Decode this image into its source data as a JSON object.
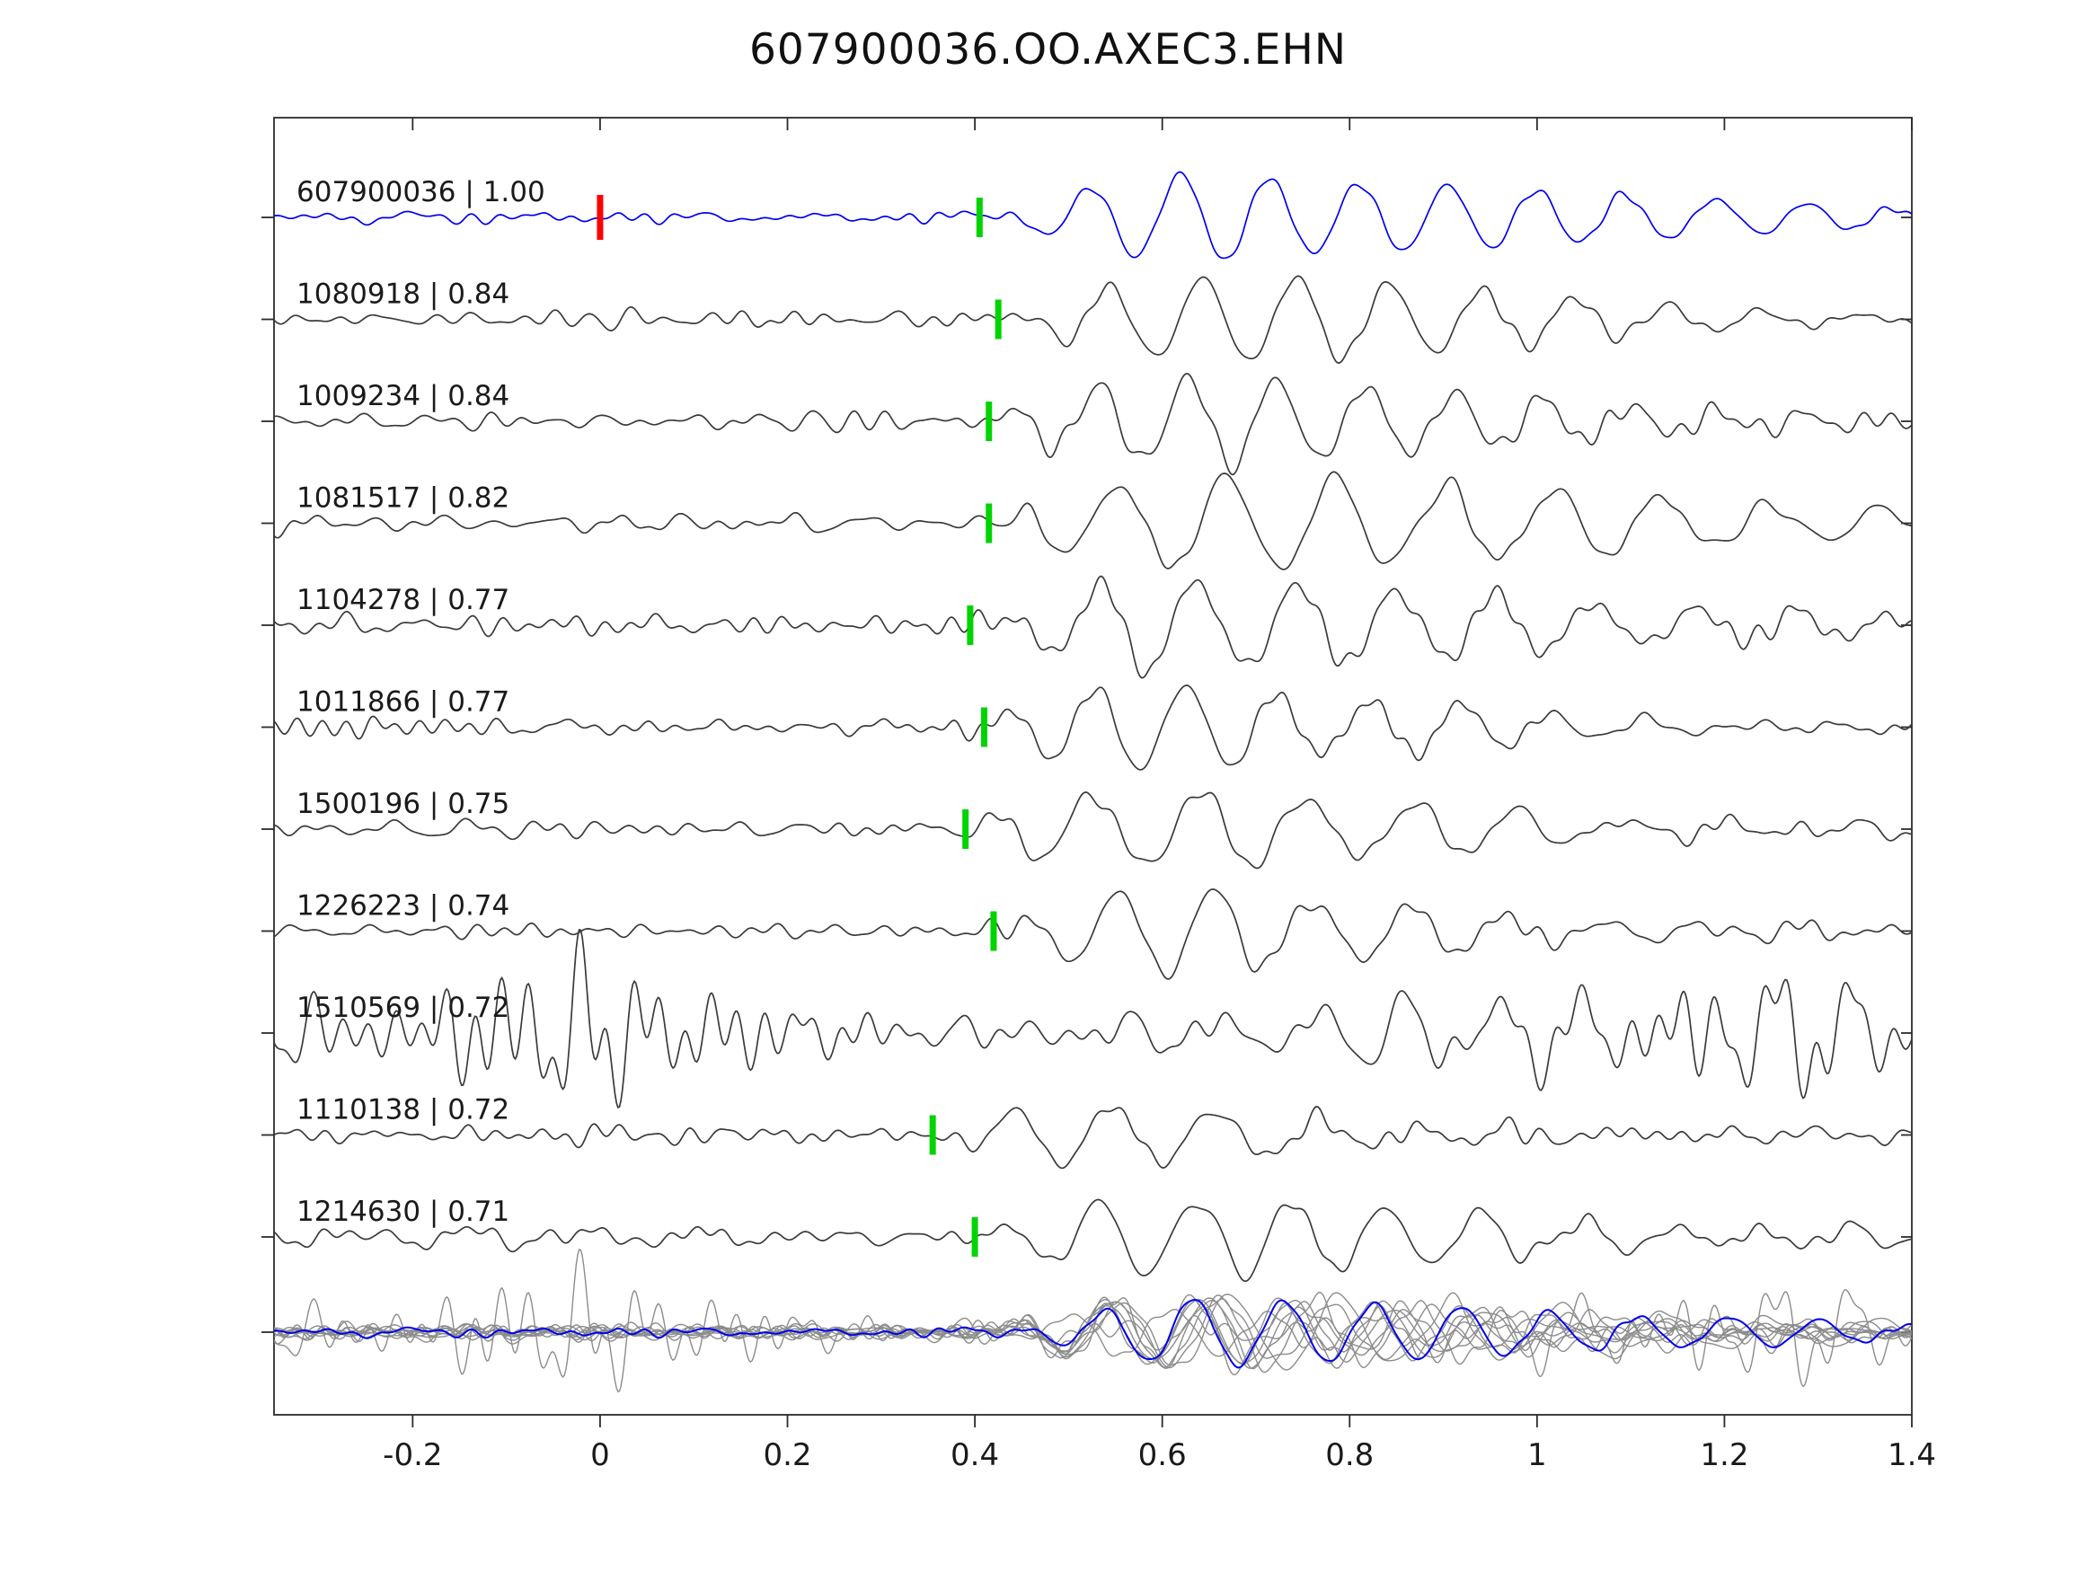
{
  "title": "607900036.OO.AXEC3.EHN",
  "chart_data": {
    "type": "line",
    "title": "607900036.OO.AXEC3.EHN",
    "xlabel": "",
    "ylabel": "",
    "xlim": [
      -0.348,
      1.4
    ],
    "grid": false,
    "legend": "none",
    "x_axis": {
      "ticks": [
        -0.2,
        0,
        0.2,
        0.4,
        0.6,
        0.8,
        1,
        1.2,
        1.4
      ],
      "labels": [
        "-0.2",
        "0",
        "0.2",
        "0.4",
        "0.6",
        "0.8",
        "1",
        "1.2",
        "1.4"
      ]
    },
    "colors": {
      "template_trace": "#0000ee",
      "detection_trace": "#3a3a3a",
      "overlay_trace": "#8c8c8c",
      "pick_marker": "#00d400",
      "template_pick_marker": "#ff0000",
      "spine": "#2b2b2b",
      "text": "#1a1a1a"
    },
    "traces": [
      {
        "id": "607900036",
        "cc": "1.00",
        "label": "607900036 | 1.00",
        "role": "template",
        "pick": 0.405,
        "template_pick": 0.0,
        "arrival": 0.405,
        "amp": 44,
        "freq": 10.5,
        "decay": 4.0,
        "noise": 3.5,
        "phase": 0.0,
        "edge_noise": 0,
        "seed": 101
      },
      {
        "id": "1080918",
        "cc": "0.84",
        "label": "1080918 | 0.84",
        "role": "detection",
        "pick": 0.425,
        "arrival": 0.425,
        "amp": 48,
        "freq": 10.0,
        "decay": 4.6,
        "noise": 4.5,
        "phase": 0.5,
        "edge_noise": 0,
        "seed": 202
      },
      {
        "id": "1009234",
        "cc": "0.84",
        "label": "1009234 | 0.84",
        "role": "detection",
        "pick": 0.415,
        "arrival": 0.415,
        "amp": 48,
        "freq": 10.5,
        "decay": 5.2,
        "noise": 5,
        "phase": 0.2,
        "edge_noise": 0,
        "seed": 303
      },
      {
        "id": "1081517",
        "cc": "0.82",
        "label": "1081517 | 0.82",
        "role": "detection",
        "pick": 0.415,
        "arrival": 0.415,
        "amp": 50,
        "freq": 8.6,
        "decay": 3.8,
        "noise": 5,
        "phase": 0.4,
        "edge_noise": 0,
        "seed": 404
      },
      {
        "id": "1104278",
        "cc": "0.77",
        "label": "1104278 | 0.77",
        "role": "detection",
        "pick": 0.395,
        "arrival": 0.4,
        "amp": 50,
        "freq": 9.4,
        "decay": 4.4,
        "noise": 6,
        "phase": 0.1,
        "edge_noise": 0,
        "seed": 505
      },
      {
        "id": "1011866",
        "cc": "0.77",
        "label": "1011866 | 0.77",
        "role": "detection",
        "pick": 0.41,
        "arrival": 0.41,
        "amp": 46,
        "freq": 10.2,
        "decay": 5.6,
        "noise": 5,
        "phase": 0.3,
        "edge_noise": 0,
        "seed": 606
      },
      {
        "id": "1500196",
        "cc": "0.75",
        "label": "1500196 | 0.75",
        "role": "detection",
        "pick": 0.39,
        "arrival": 0.395,
        "amp": 44,
        "freq": 8.8,
        "decay": 5.2,
        "noise": 5,
        "phase": 0.6,
        "edge_noise": 0,
        "seed": 707
      },
      {
        "id": "1226223",
        "cc": "0.74",
        "label": "1226223 | 0.74",
        "role": "detection",
        "pick": 0.42,
        "arrival": 0.425,
        "amp": 46,
        "freq": 9.6,
        "decay": 6.0,
        "noise": 5,
        "phase": 0.2,
        "edge_noise": 0,
        "seed": 808
      },
      {
        "id": "1510569",
        "cc": "0.72",
        "label": "1510569 | 0.72",
        "role": "detection",
        "pick": null,
        "arrival": 0.43,
        "amp": 20,
        "freq": 10.0,
        "decay": 4.2,
        "noise": 14,
        "phase": 0.0,
        "edge_noise": 0.9,
        "seed": 909
      },
      {
        "id": "1110138",
        "cc": "0.72",
        "label": "1110138 | 0.72",
        "role": "detection",
        "pick": 0.355,
        "arrival": 0.36,
        "amp": 32,
        "freq": 9.2,
        "decay": 6.5,
        "noise": 5.5,
        "phase": 3.3,
        "edge_noise": 0,
        "seed": 1010
      },
      {
        "id": "1214630",
        "cc": "0.71",
        "label": "1214630 | 0.71",
        "role": "detection",
        "pick": 0.4,
        "arrival": 0.41,
        "amp": 42,
        "freq": 9.8,
        "decay": 4.8,
        "noise": 6,
        "phase": 0.3,
        "edge_noise": 0,
        "seed": 1111
      }
    ],
    "overlay": {
      "description": "all traces time-aligned on pick and overlaid, template in blue on top",
      "align_time": 0.42,
      "amp_scale": 0.8
    }
  }
}
